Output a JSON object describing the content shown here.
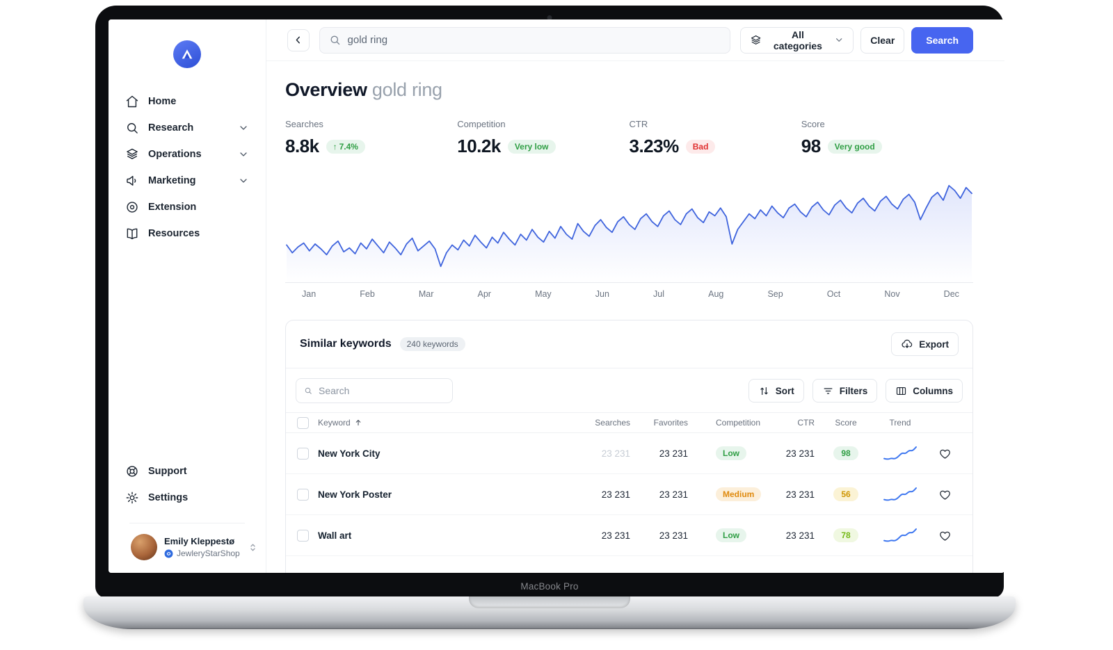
{
  "device": {
    "label": "MacBook Pro"
  },
  "sidebar": {
    "nav": [
      {
        "label": "Home"
      },
      {
        "label": "Research",
        "expandable": true
      },
      {
        "label": "Operations",
        "expandable": true
      },
      {
        "label": "Marketing",
        "expandable": true
      },
      {
        "label": "Extension"
      },
      {
        "label": "Resources"
      }
    ],
    "support": "Support",
    "settings": "Settings",
    "user": {
      "name": "Emily Kleppestø",
      "shop": "JewleryStarShop"
    }
  },
  "topbar": {
    "search_value": "gold ring",
    "categories": "All categories",
    "clear": "Clear",
    "search": "Search"
  },
  "overview": {
    "title": "Overview",
    "keyword": "gold ring",
    "stats": [
      {
        "label": "Searches",
        "value": "8.8k",
        "badge": "7.4%",
        "arrow": "↑",
        "badge_type": "green"
      },
      {
        "label": "Competition",
        "value": "10.2k",
        "badge": "Very low",
        "badge_type": "green"
      },
      {
        "label": "CTR",
        "value": "3.23%",
        "badge": "Bad",
        "badge_type": "red"
      },
      {
        "label": "Score",
        "value": "98",
        "badge": "Very good",
        "badge_type": "green"
      }
    ]
  },
  "chart_data": {
    "type": "line",
    "title": "Searches trend for 'gold ring' (Jan–Dec)",
    "x_labels": [
      "Jan",
      "Feb",
      "Mar",
      "Apr",
      "May",
      "Jun",
      "Jul",
      "Aug",
      "Sep",
      "Oct",
      "Nov",
      "Dec"
    ],
    "values": [
      34,
      26,
      32,
      36,
      28,
      35,
      30,
      24,
      33,
      38,
      27,
      31,
      25,
      36,
      30,
      40,
      33,
      26,
      37,
      31,
      24,
      35,
      41,
      28,
      33,
      38,
      30,
      12,
      26,
      34,
      29,
      39,
      33,
      44,
      37,
      31,
      42,
      36,
      47,
      40,
      34,
      45,
      39,
      50,
      42,
      37,
      48,
      41,
      53,
      45,
      40,
      56,
      48,
      43,
      54,
      60,
      52,
      47,
      58,
      63,
      55,
      50,
      61,
      66,
      58,
      53,
      64,
      69,
      60,
      55,
      66,
      71,
      62,
      57,
      68,
      64,
      72,
      63,
      35,
      50,
      58,
      66,
      61,
      70,
      64,
      74,
      67,
      62,
      72,
      76,
      68,
      63,
      73,
      78,
      70,
      65,
      75,
      80,
      72,
      67,
      77,
      82,
      74,
      69,
      79,
      84,
      76,
      71,
      81,
      86,
      78,
      60,
      72,
      83,
      88,
      80,
      95,
      90,
      82,
      93,
      87
    ],
    "ylim": [
      0,
      100
    ],
    "grid": false,
    "legend": "none",
    "line_color": "#3e63dd",
    "area_fill": "#e9eefc"
  },
  "keywords": {
    "title": "Similar keywords",
    "count": "240 keywords",
    "export": "Export",
    "search_placeholder": "Search",
    "sort": "Sort",
    "filters": "Filters",
    "columns_btn": "Columns",
    "headers": {
      "keyword": "Keyword",
      "searches": "Searches",
      "favorites": "Favorites",
      "competition": "Competition",
      "ctr": "CTR",
      "score": "Score",
      "trend": "Trend"
    },
    "rows": [
      {
        "keyword": "New York City",
        "searches": "23 231",
        "searches_muted": true,
        "favorites": "23 231",
        "competition": "Low",
        "competition_level": "low",
        "ctr": "23 231",
        "score": "98",
        "score_level": "good",
        "trend": [
          14,
          12,
          15,
          13,
          18,
          26,
          24,
          31,
          30,
          38
        ]
      },
      {
        "keyword": "New York Poster",
        "searches": "23 231",
        "searches_muted": false,
        "favorites": "23 231",
        "competition": "Medium",
        "competition_level": "medium",
        "ctr": "23 231",
        "score": "56",
        "score_level": "medium",
        "trend": [
          14,
          12,
          15,
          13,
          18,
          26,
          24,
          31,
          30,
          38
        ]
      },
      {
        "keyword": "Wall art",
        "searches": "23 231",
        "searches_muted": false,
        "favorites": "23 231",
        "competition": "Low",
        "competition_level": "low",
        "ctr": "23 231",
        "score": "78",
        "score_level": "ok",
        "trend": [
          14,
          12,
          15,
          13,
          18,
          26,
          24,
          31,
          30,
          38
        ]
      }
    ]
  },
  "colors": {
    "accent": "#4765f0",
    "chart_line": "#3e63dd",
    "badge_green_text": "#2f9e44",
    "badge_green_bg": "#e7f5ec",
    "badge_red_text": "#e03131",
    "badge_red_bg": "#fdeaea",
    "badge_orange_text": "#df8a0e",
    "badge_orange_bg": "#fcefda",
    "badge_amber_text": "#cf9705",
    "badge_lime_text": "#74b816"
  }
}
